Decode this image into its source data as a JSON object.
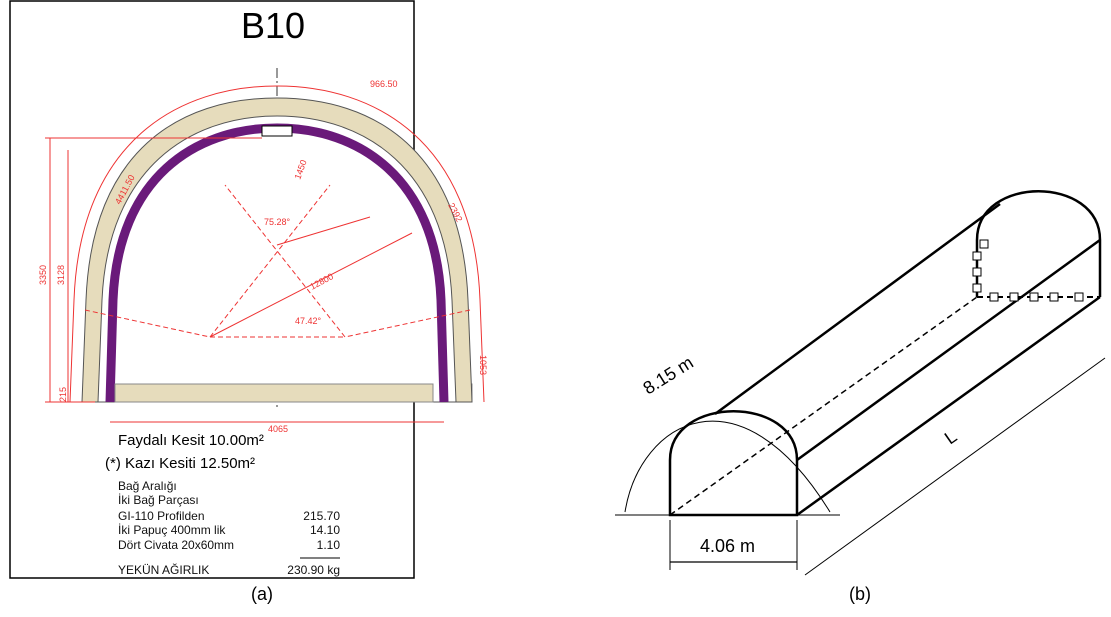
{
  "panel_a": {
    "title": "B10",
    "dimensions": [
      "966.50",
      "4411.50",
      "2392",
      "3350",
      "3128",
      "1450",
      "75.28°",
      "12800",
      "47.42°",
      "1053",
      "4065",
      "215"
    ],
    "summary": [
      "Faydalı Kesit 10.00m²",
      "(*) Kazı Kesiti 12.50m²"
    ],
    "table": {
      "rows": [
        [
          "Bağ Aralığı"
        ],
        [
          "İki Bağ Parçası"
        ],
        [
          "GI-110 Profilden",
          "215.70"
        ],
        [
          "İki Papuç 400mm lik",
          "14.10"
        ],
        [
          "Dört Civata 20x60mm",
          "1.10"
        ],
        [
          "YEKÜN AĞIRLIK",
          "230.90 kg"
        ]
      ]
    },
    "label": "(a)"
  },
  "panel_b": {
    "arc_length": "8.15 m",
    "width": "4.06 m",
    "length": "L",
    "label": "(b)"
  }
}
